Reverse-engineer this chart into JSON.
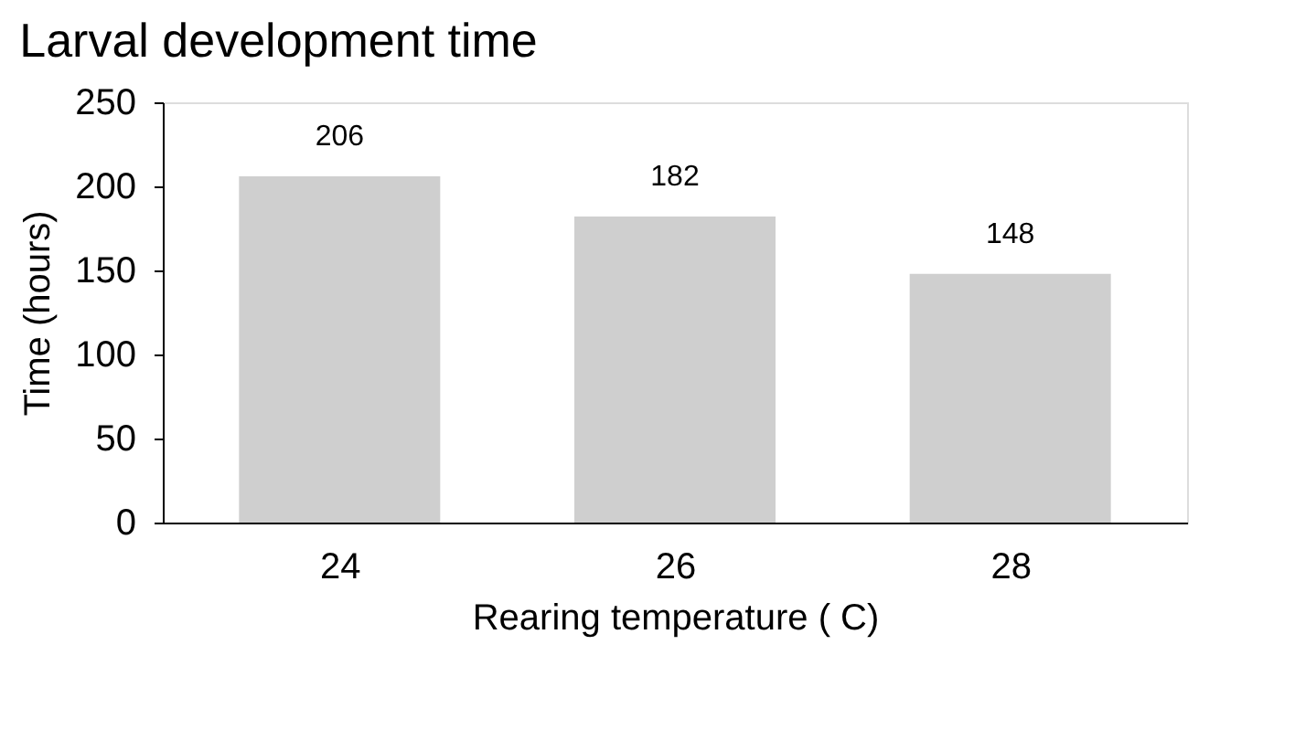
{
  "chart_data": {
    "type": "bar",
    "title": "Larval development time",
    "xlabel": "Rearing temperature ( C)",
    "ylabel": "Time (hours)",
    "categories": [
      "24",
      "26",
      "28"
    ],
    "values": [
      206,
      182,
      148
    ],
    "color": "#cfcfcf",
    "ylim": [
      0,
      250
    ],
    "yticks": [
      0,
      50,
      100,
      150,
      200,
      250
    ],
    "grid": false,
    "data_labels": true
  }
}
